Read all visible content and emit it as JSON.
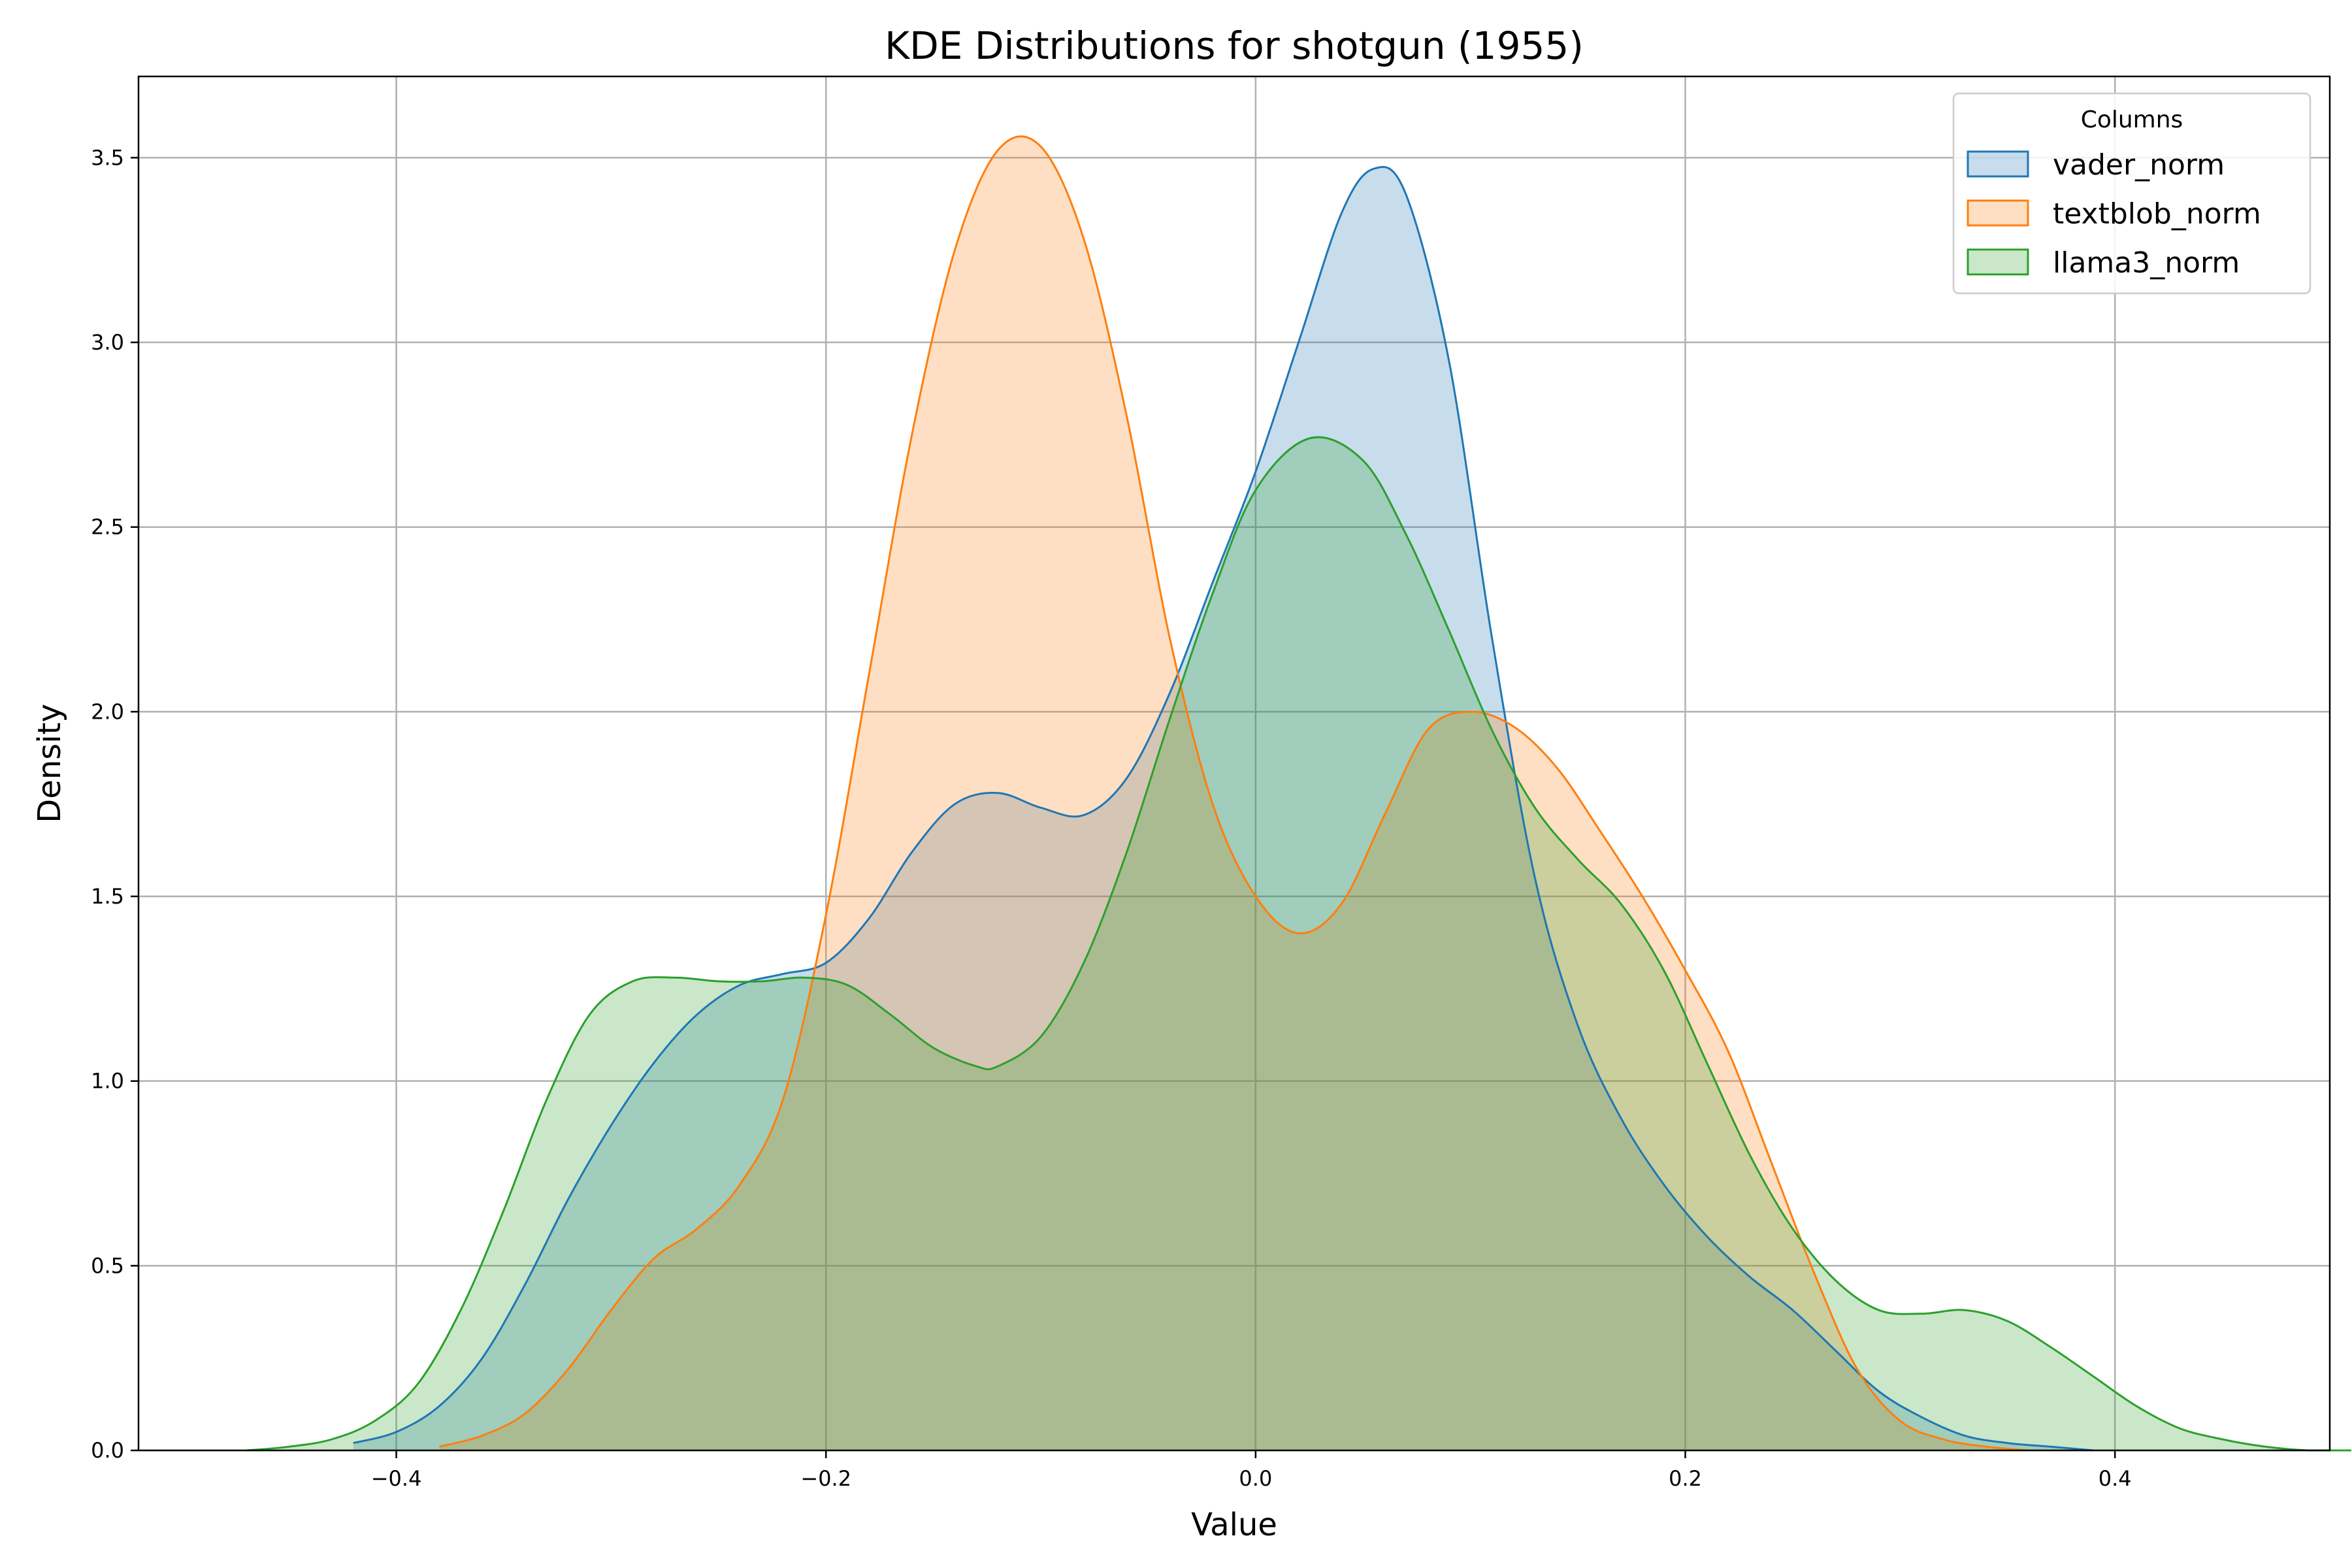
{
  "chart_data": {
    "type": "area",
    "title": "KDE Distributions for shotgun (1955)",
    "xlabel": "Value",
    "ylabel": "Density",
    "xlim": [
      -0.52,
      0.5
    ],
    "ylim": [
      0,
      3.72
    ],
    "xticks": [
      -0.4,
      -0.2,
      0.0,
      0.2,
      0.4
    ],
    "xtick_labels": [
      "−0.4",
      "−0.2",
      "0.0",
      "0.2",
      "0.4"
    ],
    "yticks": [
      0.0,
      0.5,
      1.0,
      1.5,
      2.0,
      2.5,
      3.0,
      3.5
    ],
    "ytick_labels": [
      "0.0",
      "0.5",
      "1.0",
      "1.5",
      "2.0",
      "2.5",
      "3.0",
      "3.5"
    ],
    "grid": true,
    "legend": {
      "title": "Columns",
      "position": "top-right"
    },
    "series": [
      {
        "name": "vader_norm",
        "color": "#1f77b4",
        "x": [
          -0.42,
          -0.4,
          -0.38,
          -0.36,
          -0.34,
          -0.32,
          -0.3,
          -0.28,
          -0.26,
          -0.24,
          -0.22,
          -0.2,
          -0.18,
          -0.16,
          -0.14,
          -0.12,
          -0.1,
          -0.08,
          -0.06,
          -0.04,
          -0.02,
          0.0,
          0.02,
          0.04,
          0.055,
          0.07,
          0.09,
          0.11,
          0.13,
          0.15,
          0.17,
          0.19,
          0.21,
          0.23,
          0.25,
          0.27,
          0.29,
          0.31,
          0.33,
          0.35,
          0.37,
          0.39
        ],
        "y": [
          0.02,
          0.05,
          0.12,
          0.25,
          0.45,
          0.68,
          0.88,
          1.05,
          1.18,
          1.26,
          1.29,
          1.32,
          1.44,
          1.62,
          1.75,
          1.78,
          1.74,
          1.72,
          1.82,
          2.05,
          2.35,
          2.65,
          3.0,
          3.35,
          3.47,
          3.4,
          2.95,
          2.2,
          1.55,
          1.15,
          0.9,
          0.72,
          0.58,
          0.47,
          0.38,
          0.27,
          0.16,
          0.09,
          0.04,
          0.02,
          0.01,
          0.0
        ]
      },
      {
        "name": "textblob_norm",
        "color": "#ff7f0e",
        "x": [
          -0.38,
          -0.36,
          -0.34,
          -0.32,
          -0.3,
          -0.28,
          -0.26,
          -0.24,
          -0.22,
          -0.2,
          -0.18,
          -0.16,
          -0.14,
          -0.12,
          -0.1,
          -0.08,
          -0.06,
          -0.04,
          -0.02,
          0.0,
          0.02,
          0.04,
          0.06,
          0.08,
          0.1,
          0.12,
          0.14,
          0.16,
          0.18,
          0.2,
          0.22,
          0.24,
          0.26,
          0.28,
          0.3,
          0.32,
          0.34,
          0.36
        ],
        "y": [
          0.01,
          0.04,
          0.1,
          0.22,
          0.38,
          0.52,
          0.6,
          0.72,
          0.95,
          1.45,
          2.1,
          2.75,
          3.25,
          3.52,
          3.53,
          3.28,
          2.8,
          2.2,
          1.75,
          1.5,
          1.4,
          1.48,
          1.72,
          1.95,
          2.0,
          1.96,
          1.85,
          1.68,
          1.5,
          1.3,
          1.08,
          0.78,
          0.48,
          0.22,
          0.08,
          0.03,
          0.01,
          0.0
        ]
      },
      {
        "name": "llama3_norm",
        "color": "#2ca02c",
        "x": [
          -0.47,
          -0.45,
          -0.43,
          -0.41,
          -0.39,
          -0.37,
          -0.35,
          -0.33,
          -0.31,
          -0.29,
          -0.27,
          -0.25,
          -0.23,
          -0.21,
          -0.19,
          -0.17,
          -0.15,
          -0.13,
          -0.12,
          -0.1,
          -0.08,
          -0.06,
          -0.04,
          -0.02,
          0.0,
          0.025,
          0.05,
          0.07,
          0.09,
          0.11,
          0.13,
          0.15,
          0.17,
          0.19,
          0.21,
          0.23,
          0.25,
          0.27,
          0.29,
          0.31,
          0.33,
          0.35,
          0.37,
          0.39,
          0.41,
          0.43,
          0.45,
          0.47,
          0.49,
          0.51
        ],
        "y": [
          0.0,
          0.01,
          0.03,
          0.08,
          0.18,
          0.38,
          0.65,
          0.95,
          1.18,
          1.27,
          1.28,
          1.27,
          1.27,
          1.28,
          1.26,
          1.18,
          1.09,
          1.04,
          1.04,
          1.12,
          1.32,
          1.62,
          1.98,
          2.32,
          2.6,
          2.74,
          2.68,
          2.48,
          2.22,
          1.95,
          1.74,
          1.6,
          1.48,
          1.3,
          1.05,
          0.8,
          0.6,
          0.46,
          0.38,
          0.37,
          0.38,
          0.35,
          0.28,
          0.2,
          0.12,
          0.06,
          0.03,
          0.01,
          0.0,
          0.0
        ]
      }
    ]
  }
}
